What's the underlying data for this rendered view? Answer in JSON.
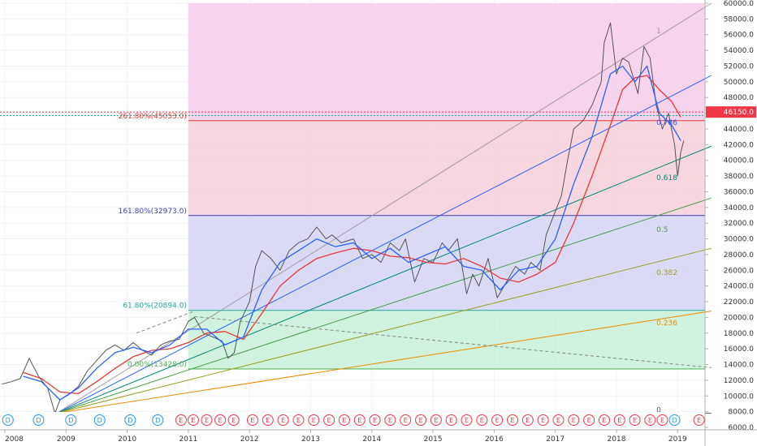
{
  "chart_data": {
    "type": "line",
    "title": "",
    "price_axis": {
      "min": 6000,
      "max": 60000,
      "ticks": [
        "6000.0",
        "8000.0",
        "10000.0",
        "12000.0",
        "14000.0",
        "16000.0",
        "18000.0",
        "20000.0",
        "22000.0",
        "24000.0",
        "26000.0",
        "28000.0",
        "30000.0",
        "32000.0",
        "34000.0",
        "36000.0",
        "38000.0",
        "40000.0",
        "42000.0",
        "44000.0",
        "46000.0",
        "48000.0",
        "50000.0",
        "52000.0",
        "54000.0",
        "56000.0",
        "58000.0",
        "60000.0"
      ],
      "tick_values": [
        6000,
        8000,
        10000,
        12000,
        14000,
        16000,
        18000,
        20000,
        22000,
        24000,
        26000,
        28000,
        30000,
        32000,
        34000,
        36000,
        38000,
        40000,
        42000,
        44000,
        46000,
        48000,
        50000,
        52000,
        54000,
        56000,
        58000,
        60000
      ]
    },
    "time_axis": {
      "min": 2008.0,
      "max": 2019.55,
      "ticks": [
        "2008",
        "2009",
        "2010",
        "2011",
        "2012",
        "2013",
        "2014",
        "2015",
        "2016",
        "2017",
        "2018",
        "2019"
      ],
      "tick_values": [
        2008,
        2009,
        2010,
        2011,
        2012,
        2013,
        2014,
        2015,
        2016,
        2017,
        2018,
        2019
      ]
    },
    "current_price": {
      "label": "46150.0",
      "value": 46150,
      "color": "#f23645"
    },
    "fib_retracement": {
      "x_start": 2011.0,
      "x_end": 2019.5,
      "levels": [
        {
          "label": "0.00%(13428.0)",
          "value": 13428,
          "color": "#4caf50",
          "fill": "#c8f0d8"
        },
        {
          "label": "61.80%(20894.0)",
          "value": 20894,
          "color": "#26a69a",
          "fill": "#d5d3f3"
        },
        {
          "label": "161.80%(32973.0)",
          "value": 32973,
          "color": "#3f3fb0",
          "fill": "#f4cfd9"
        },
        {
          "label": "261.80%(45053.0)",
          "value": 45053,
          "color": "#e53935",
          "fill": "#f4cdea"
        }
      ],
      "top_value": 60000
    },
    "gann_fan": {
      "origin": {
        "x": 2008.85,
        "y": 7800
      },
      "lines": [
        {
          "label": "1",
          "to": {
            "x": 2019.55,
            "y": 60000
          },
          "color": "#9e9e9e",
          "label_at": {
            "x": 2018.6,
            "y": 56200
          }
        },
        {
          "label": "0.786",
          "to": {
            "x": 2019.55,
            "y": 50800
          },
          "color": "#2962ff",
          "label_at": {
            "x": 2018.6,
            "y": 44500
          }
        },
        {
          "label": "0.618",
          "to": {
            "x": 2019.55,
            "y": 41800
          },
          "color": "#00897b",
          "label_at": {
            "x": 2018.6,
            "y": 37500
          }
        },
        {
          "label": "0.5",
          "to": {
            "x": 2019.55,
            "y": 35200
          },
          "color": "#43a047",
          "label_at": {
            "x": 2018.6,
            "y": 30900
          }
        },
        {
          "label": "0.382",
          "to": {
            "x": 2019.55,
            "y": 28800
          },
          "color": "#9e9d24",
          "label_at": {
            "x": 2018.6,
            "y": 25400
          }
        },
        {
          "label": "0.236",
          "to": {
            "x": 2019.55,
            "y": 20800
          },
          "color": "#ef8a00",
          "label_at": {
            "x": 2018.6,
            "y": 19000
          }
        },
        {
          "label": "0",
          "to": {
            "x": 2019.55,
            "y": 7800
          },
          "color": "#555555",
          "label_at": {
            "x": 2018.6,
            "y": 7900
          }
        }
      ]
    },
    "extra_lines": [
      {
        "name": "dashed",
        "from": {
          "x": 2010.15,
          "y": 18000
        },
        "to": {
          "x": 2011.1,
          "y": 20800
        },
        "color": "#888888",
        "dash": true
      },
      {
        "name": "dashed",
        "from": {
          "x": 2011.1,
          "y": 20100
        },
        "to": {
          "x": 2019.55,
          "y": 13600
        },
        "color": "#888888",
        "dash": true
      }
    ],
    "horizontal_lines": [
      {
        "value": 46150,
        "color": "#f23645",
        "style": "dotted"
      },
      {
        "value": 45700,
        "color": "#26a69a",
        "style": "dotted"
      }
    ],
    "series": [
      {
        "color": "#555555",
        "x": [
          2007.95,
          2008.1,
          2008.25,
          2008.4,
          2008.45,
          2008.55,
          2008.7,
          2008.82,
          2008.9,
          2009.05,
          2009.2,
          2009.35,
          2009.5,
          2009.65,
          2009.8,
          2009.95,
          2010.1,
          2010.25,
          2010.4,
          2010.55,
          2010.7,
          2010.85,
          2011.0,
          2011.1,
          2011.25,
          2011.4,
          2011.55,
          2011.65,
          2011.75,
          2011.85,
          2012.0,
          2012.1,
          2012.2,
          2012.35,
          2012.5,
          2012.65,
          2012.8,
          2012.95,
          2013.1,
          2013.25,
          2013.35,
          2013.5,
          2013.7,
          2013.85,
          2014.0,
          2014.15,
          2014.3,
          2014.45,
          2014.55,
          2014.7,
          2014.85,
          2015.0,
          2015.15,
          2015.25,
          2015.4,
          2015.55,
          2015.65,
          2015.75,
          2015.9,
          2016.05,
          2016.2,
          2016.35,
          2016.5,
          2016.6,
          2016.75,
          2016.85,
          2017.0,
          2017.1,
          2017.2,
          2017.3,
          2017.45,
          2017.6,
          2017.75,
          2017.8,
          2017.9,
          2018.0,
          2018.1,
          2018.2,
          2018.35,
          2018.45,
          2018.55,
          2018.65,
          2018.75,
          2018.85,
          2018.95,
          2019.0,
          2019.05,
          2019.1
        ],
        "values": [
          11500,
          11800,
          12200,
          14800,
          14000,
          12500,
          11000,
          7800,
          9500,
          10200,
          11200,
          13200,
          14500,
          15800,
          16500,
          15800,
          16800,
          15800,
          15200,
          16500,
          17000,
          17200,
          19500,
          20000,
          18000,
          17500,
          17000,
          14800,
          15500,
          19500,
          22000,
          26500,
          28500,
          27500,
          26000,
          28500,
          29500,
          30000,
          31500,
          30000,
          30500,
          29500,
          30000,
          27500,
          28000,
          27000,
          29500,
          28500,
          30000,
          24500,
          27500,
          27000,
          29500,
          28500,
          30000,
          23000,
          25500,
          24000,
          27500,
          22500,
          24500,
          26500,
          25500,
          27000,
          26000,
          30500,
          33500,
          35500,
          40000,
          44000,
          45000,
          47000,
          50000,
          55000,
          57500,
          51000,
          53000,
          52500,
          48500,
          54500,
          53000,
          47000,
          44000,
          46000,
          42000,
          38000,
          41000,
          42500
        ]
      },
      {
        "color": "#e53935",
        "x": [
          2008.3,
          2008.6,
          2008.9,
          2009.2,
          2009.5,
          2009.8,
          2010.1,
          2010.4,
          2010.7,
          2011.0,
          2011.3,
          2011.6,
          2011.9,
          2012.2,
          2012.5,
          2012.8,
          2013.1,
          2013.4,
          2013.7,
          2014.0,
          2014.3,
          2014.6,
          2014.9,
          2015.2,
          2015.5,
          2015.8,
          2016.1,
          2016.4,
          2016.7,
          2017.0,
          2017.3,
          2017.6,
          2017.9,
          2018.1,
          2018.3,
          2018.5,
          2018.7,
          2018.9,
          2019.05
        ],
        "values": [
          13000,
          12200,
          10500,
          10300,
          11800,
          13500,
          15000,
          15800,
          16000,
          16800,
          18000,
          18200,
          17200,
          20500,
          24000,
          26000,
          27500,
          28200,
          28800,
          28500,
          27800,
          27600,
          27000,
          26800,
          27500,
          26500,
          25000,
          24500,
          25500,
          27000,
          32000,
          38000,
          44500,
          49000,
          50500,
          50800,
          49000,
          47500,
          45500
        ]
      },
      {
        "color": "#2962ff",
        "x": [
          2008.3,
          2008.6,
          2008.9,
          2009.2,
          2009.5,
          2009.8,
          2010.1,
          2010.4,
          2010.7,
          2011.0,
          2011.3,
          2011.6,
          2011.9,
          2012.2,
          2012.5,
          2012.8,
          2013.1,
          2013.4,
          2013.7,
          2014.0,
          2014.3,
          2014.6,
          2014.9,
          2015.2,
          2015.5,
          2015.8,
          2016.1,
          2016.4,
          2016.7,
          2017.0,
          2017.3,
          2017.6,
          2017.9,
          2018.1,
          2018.3,
          2018.5,
          2018.7,
          2018.9,
          2019.05
        ],
        "values": [
          12500,
          11800,
          9500,
          11000,
          13500,
          15500,
          16200,
          15500,
          16500,
          18500,
          18500,
          16500,
          17500,
          23500,
          27000,
          28500,
          30000,
          29000,
          29500,
          27500,
          28800,
          27000,
          28000,
          29000,
          26500,
          26000,
          23500,
          26000,
          26500,
          30000,
          37000,
          43000,
          51000,
          52000,
          50000,
          52000,
          46000,
          44500,
          42500
        ]
      }
    ],
    "events": {
      "y": 518,
      "items": [
        {
          "label": "D",
          "x": 2008.05,
          "color": "#2196f3"
        },
        {
          "label": "D",
          "x": 2008.55,
          "color": "#2196f3"
        },
        {
          "label": "D",
          "x": 2009.08,
          "color": "#2196f3"
        },
        {
          "label": "D",
          "x": 2009.55,
          "color": "#2196f3"
        },
        {
          "label": "D",
          "x": 2010.05,
          "color": "#2196f3"
        },
        {
          "label": "D",
          "x": 2010.5,
          "color": "#2196f3"
        },
        {
          "label": "E",
          "x": 2010.88,
          "color": "#f23645"
        },
        {
          "label": "E",
          "x": 2011.08,
          "color": "#f23645"
        },
        {
          "label": "E",
          "x": 2011.3,
          "color": "#f23645"
        },
        {
          "label": "E",
          "x": 2011.52,
          "color": "#f23645"
        },
        {
          "label": "E",
          "x": 2011.74,
          "color": "#f23645"
        },
        {
          "label": "E",
          "x": 2012.05,
          "color": "#f23645"
        },
        {
          "label": "E",
          "x": 2012.3,
          "color": "#f23645"
        },
        {
          "label": "E",
          "x": 2012.55,
          "color": "#f23645"
        },
        {
          "label": "E",
          "x": 2012.8,
          "color": "#f23645"
        },
        {
          "label": "E",
          "x": 2013.05,
          "color": "#f23645"
        },
        {
          "label": "E",
          "x": 2013.3,
          "color": "#f23645"
        },
        {
          "label": "E",
          "x": 2013.55,
          "color": "#f23645"
        },
        {
          "label": "E",
          "x": 2013.8,
          "color": "#f23645"
        },
        {
          "label": "E",
          "x": 2014.05,
          "color": "#f23645"
        },
        {
          "label": "E",
          "x": 2014.3,
          "color": "#f23645"
        },
        {
          "label": "E",
          "x": 2014.55,
          "color": "#f23645"
        },
        {
          "label": "E",
          "x": 2014.8,
          "color": "#f23645"
        },
        {
          "label": "E",
          "x": 2015.05,
          "color": "#f23645"
        },
        {
          "label": "E",
          "x": 2015.3,
          "color": "#f23645"
        },
        {
          "label": "E",
          "x": 2015.55,
          "color": "#f23645"
        },
        {
          "label": "E",
          "x": 2015.8,
          "color": "#f23645"
        },
        {
          "label": "E",
          "x": 2016.05,
          "color": "#f23645"
        },
        {
          "label": "E",
          "x": 2016.3,
          "color": "#f23645"
        },
        {
          "label": "E",
          "x": 2016.55,
          "color": "#f23645"
        },
        {
          "label": "E",
          "x": 2016.8,
          "color": "#f23645"
        },
        {
          "label": "E",
          "x": 2017.05,
          "color": "#f23645"
        },
        {
          "label": "E",
          "x": 2017.3,
          "color": "#f23645"
        },
        {
          "label": "E",
          "x": 2017.55,
          "color": "#f23645"
        },
        {
          "label": "E",
          "x": 2017.8,
          "color": "#f23645"
        },
        {
          "label": "E",
          "x": 2018.05,
          "color": "#f23645"
        },
        {
          "label": "E",
          "x": 2018.3,
          "color": "#f23645"
        },
        {
          "label": "E",
          "x": 2018.55,
          "color": "#f23645"
        },
        {
          "label": "E",
          "x": 2018.75,
          "color": "#f23645"
        },
        {
          "label": "D",
          "x": 2018.95,
          "color": "#2196f3"
        },
        {
          "label": "E",
          "x": 2019.35,
          "color": "#f23645"
        }
      ]
    }
  }
}
